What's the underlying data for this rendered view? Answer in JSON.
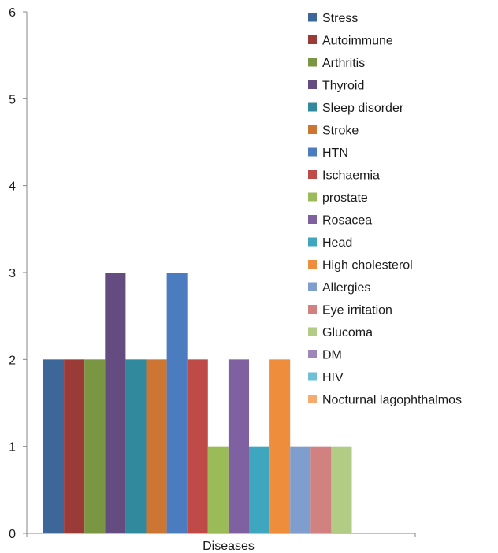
{
  "chart_data": {
    "type": "bar",
    "categories": [
      "Diseases"
    ],
    "xlabel": "Diseases",
    "ylabel": "",
    "title": "",
    "ylim": [
      0,
      6
    ],
    "yticks": [
      "0",
      "1",
      "2",
      "3",
      "4",
      "5",
      "6"
    ],
    "legend_position": "right",
    "grid": false,
    "series": [
      {
        "name": "Stress",
        "values": [
          2
        ],
        "color": "#3d6798"
      },
      {
        "name": "Autoimmune",
        "values": [
          2
        ],
        "color": "#9b3b38"
      },
      {
        "name": "Arthritis",
        "values": [
          2
        ],
        "color": "#7a9642"
      },
      {
        "name": "Thyroid",
        "values": [
          3
        ],
        "color": "#654c80"
      },
      {
        "name": "Sleep disorder",
        "values": [
          2
        ],
        "color": "#31899d"
      },
      {
        "name": "Stroke",
        "values": [
          2
        ],
        "color": "#cd7633"
      },
      {
        "name": "HTN",
        "values": [
          3
        ],
        "color": "#4b7cc0"
      },
      {
        "name": "Ischaemia",
        "values": [
          2
        ],
        "color": "#c04a48"
      },
      {
        "name": "prostate",
        "values": [
          1
        ],
        "color": "#9bbb59"
      },
      {
        "name": "Rosacea",
        "values": [
          2
        ],
        "color": "#7f61a1"
      },
      {
        "name": "Head",
        "values": [
          1
        ],
        "color": "#3fa6c0"
      },
      {
        "name": "High cholesterol",
        "values": [
          2
        ],
        "color": "#ee8d3c"
      },
      {
        "name": "Allergies",
        "values": [
          1
        ],
        "color": "#7f9ece"
      },
      {
        "name": "Eye irritation",
        "values": [
          1
        ],
        "color": "#d08180"
      },
      {
        "name": "Glucoma",
        "values": [
          1
        ],
        "color": "#b2cb85"
      },
      {
        "name": "DM",
        "values": [
          null
        ],
        "color": "#9c87b8"
      },
      {
        "name": "HIV",
        "values": [
          null
        ],
        "color": "#6fc0d4"
      },
      {
        "name": "Nocturnal lagophthalmos",
        "values": [
          null
        ],
        "color": "#f6aa6d"
      }
    ]
  }
}
